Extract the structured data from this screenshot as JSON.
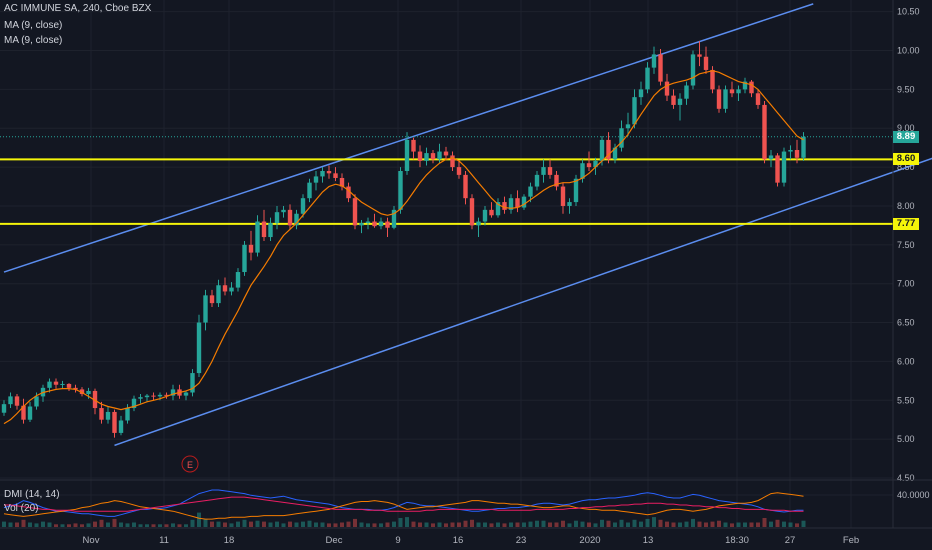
{
  "header": {
    "symbol_line": "AC IMMUNE SA, 240, Cboe BZX",
    "ma1": "MA (9, close)",
    "ma2": "MA (9, close)",
    "dmi": "DMI (14, 14)",
    "vol": "Vol (20)"
  },
  "price_tags": {
    "last": "8.89",
    "level_upper": "8.60",
    "level_lower": "7.77"
  },
  "event_marker": "E",
  "colors": {
    "background": "#131722",
    "up": "#26a69a",
    "down": "#ef5350",
    "ma": "#f57c00",
    "channel": "#5b8def",
    "level": "#f5f50a",
    "last_price": "#26a69a",
    "dmi_plus": "#2962ff",
    "dmi_minus": "#f57c00",
    "adx": "#e91e63"
  },
  "chart_data": {
    "type": "candlestick",
    "title": "AC IMMUNE SA, 240, Cboe BZX",
    "y_axis": {
      "ticks": [
        "4.50",
        "5.00",
        "5.50",
        "6.00",
        "6.50",
        "7.00",
        "7.50",
        "8.00",
        "8.50",
        "9.00",
        "9.50",
        "10.00",
        "10.50"
      ],
      "ylim": [
        4.5,
        10.65
      ]
    },
    "x_axis": {
      "ticks": [
        "Nov",
        "11",
        "18",
        "Dec",
        "9",
        "16",
        "23",
        "2020",
        "13",
        "18:30",
        "27",
        "Feb"
      ]
    },
    "horizontal_levels": [
      8.6,
      7.77
    ],
    "last_price": 8.89,
    "indicators": [
      "MA (9, close)",
      "DMI (14, 14)",
      "Vol (20)"
    ],
    "dmi_tick": "40.0000",
    "channel_lines": [
      {
        "name": "upper",
        "from": [
          0,
          7.15
        ],
        "to": [
          124.5,
          10.6
        ]
      },
      {
        "name": "lower",
        "from": [
          17,
          4.92
        ],
        "to": [
          147.5,
          8.75
        ]
      }
    ],
    "candles_ohlc": [
      [
        5.34,
        5.5,
        5.3,
        5.45
      ],
      [
        5.45,
        5.6,
        5.4,
        5.55
      ],
      [
        5.55,
        5.58,
        5.38,
        5.43
      ],
      [
        5.43,
        5.52,
        5.2,
        5.25
      ],
      [
        5.25,
        5.48,
        5.22,
        5.42
      ],
      [
        5.42,
        5.6,
        5.38,
        5.55
      ],
      [
        5.55,
        5.7,
        5.48,
        5.66
      ],
      [
        5.66,
        5.78,
        5.6,
        5.74
      ],
      [
        5.74,
        5.78,
        5.65,
        5.7
      ],
      [
        5.7,
        5.75,
        5.65,
        5.71
      ],
      [
        5.71,
        5.72,
        5.62,
        5.66
      ],
      [
        5.66,
        5.7,
        5.6,
        5.64
      ],
      [
        5.64,
        5.67,
        5.55,
        5.58
      ],
      [
        5.58,
        5.66,
        5.52,
        5.62
      ],
      [
        5.62,
        5.65,
        5.32,
        5.4
      ],
      [
        5.4,
        5.48,
        5.2,
        5.25
      ],
      [
        5.25,
        5.42,
        5.2,
        5.35
      ],
      [
        5.35,
        5.38,
        5.02,
        5.08
      ],
      [
        5.08,
        5.3,
        5.05,
        5.24
      ],
      [
        5.24,
        5.45,
        5.2,
        5.4
      ],
      [
        5.4,
        5.56,
        5.36,
        5.52
      ],
      [
        5.52,
        5.58,
        5.46,
        5.54
      ],
      [
        5.54,
        5.58,
        5.48,
        5.56
      ],
      [
        5.56,
        5.6,
        5.5,
        5.55
      ],
      [
        5.55,
        5.6,
        5.5,
        5.57
      ],
      [
        5.57,
        5.6,
        5.52,
        5.56
      ],
      [
        5.56,
        5.7,
        5.5,
        5.64
      ],
      [
        5.64,
        5.7,
        5.52,
        5.56
      ],
      [
        5.56,
        5.62,
        5.5,
        5.6
      ],
      [
        5.6,
        5.9,
        5.55,
        5.85
      ],
      [
        5.85,
        6.6,
        5.8,
        6.5
      ],
      [
        6.5,
        6.92,
        6.4,
        6.85
      ],
      [
        6.85,
        6.92,
        6.7,
        6.75
      ],
      [
        6.75,
        7.05,
        6.7,
        6.98
      ],
      [
        6.98,
        7.08,
        6.85,
        6.9
      ],
      [
        6.9,
        7.02,
        6.85,
        6.95
      ],
      [
        6.95,
        7.2,
        6.9,
        7.15
      ],
      [
        7.15,
        7.55,
        7.1,
        7.5
      ],
      [
        7.5,
        7.68,
        7.3,
        7.4
      ],
      [
        7.4,
        7.88,
        7.35,
        7.8
      ],
      [
        7.8,
        7.95,
        7.55,
        7.6
      ],
      [
        7.6,
        7.85,
        7.55,
        7.78
      ],
      [
        7.78,
        8.0,
        7.7,
        7.92
      ],
      [
        7.92,
        8.0,
        7.85,
        7.95
      ],
      [
        7.95,
        8.02,
        7.7,
        7.75
      ],
      [
        7.75,
        7.95,
        7.7,
        7.9
      ],
      [
        7.9,
        8.15,
        7.85,
        8.1
      ],
      [
        8.1,
        8.35,
        8.05,
        8.3
      ],
      [
        8.3,
        8.45,
        8.2,
        8.38
      ],
      [
        8.38,
        8.5,
        8.3,
        8.45
      ],
      [
        8.45,
        8.52,
        8.35,
        8.42
      ],
      [
        8.42,
        8.5,
        8.32,
        8.36
      ],
      [
        8.36,
        8.42,
        8.2,
        8.25
      ],
      [
        8.25,
        8.3,
        8.05,
        8.1
      ],
      [
        8.1,
        8.15,
        7.7,
        7.75
      ],
      [
        7.75,
        7.82,
        7.65,
        7.78
      ],
      [
        7.78,
        7.85,
        7.7,
        7.8
      ],
      [
        7.8,
        7.9,
        7.72,
        7.74
      ],
      [
        7.74,
        7.85,
        7.7,
        7.8
      ],
      [
        7.8,
        7.85,
        7.6,
        7.72
      ],
      [
        7.72,
        8.0,
        7.7,
        7.95
      ],
      [
        7.95,
        8.5,
        7.9,
        8.45
      ],
      [
        8.45,
        8.95,
        8.4,
        8.85
      ],
      [
        8.85,
        8.88,
        8.6,
        8.7
      ],
      [
        8.7,
        8.78,
        8.5,
        8.58
      ],
      [
        8.58,
        8.75,
        8.52,
        8.68
      ],
      [
        8.68,
        8.72,
        8.55,
        8.6
      ],
      [
        8.6,
        8.8,
        8.55,
        8.7
      ],
      [
        8.7,
        8.76,
        8.6,
        8.65
      ],
      [
        8.65,
        8.7,
        8.45,
        8.5
      ],
      [
        8.5,
        8.58,
        8.35,
        8.4
      ],
      [
        8.4,
        8.45,
        8.02,
        8.1
      ],
      [
        8.1,
        8.15,
        7.7,
        7.75
      ],
      [
        7.75,
        7.85,
        7.6,
        7.8
      ],
      [
        7.8,
        8.0,
        7.75,
        7.95
      ],
      [
        7.95,
        8.05,
        7.85,
        7.88
      ],
      [
        7.88,
        8.1,
        7.85,
        8.05
      ],
      [
        8.05,
        8.12,
        7.9,
        7.95
      ],
      [
        7.95,
        8.15,
        7.9,
        8.1
      ],
      [
        8.1,
        8.2,
        7.92,
        7.98
      ],
      [
        7.98,
        8.15,
        7.95,
        8.12
      ],
      [
        8.12,
        8.3,
        8.05,
        8.25
      ],
      [
        8.25,
        8.45,
        8.2,
        8.4
      ],
      [
        8.4,
        8.6,
        8.3,
        8.5
      ],
      [
        8.5,
        8.6,
        8.35,
        8.4
      ],
      [
        8.4,
        8.45,
        8.2,
        8.25
      ],
      [
        8.25,
        8.3,
        7.9,
        8.0
      ],
      [
        8.0,
        8.1,
        7.9,
        8.05
      ],
      [
        8.05,
        8.4,
        8.0,
        8.35
      ],
      [
        8.35,
        8.6,
        8.3,
        8.55
      ],
      [
        8.55,
        8.7,
        8.45,
        8.5
      ],
      [
        8.5,
        8.62,
        8.4,
        8.58
      ],
      [
        8.58,
        8.9,
        8.52,
        8.85
      ],
      [
        8.85,
        8.95,
        8.55,
        8.6
      ],
      [
        8.6,
        8.8,
        8.55,
        8.75
      ],
      [
        8.75,
        9.1,
        8.7,
        9.0
      ],
      [
        9.0,
        9.2,
        8.9,
        9.05
      ],
      [
        9.05,
        9.5,
        9.0,
        9.4
      ],
      [
        9.4,
        9.6,
        9.3,
        9.5
      ],
      [
        9.5,
        9.85,
        9.45,
        9.78
      ],
      [
        9.78,
        10.05,
        9.7,
        9.95
      ],
      [
        9.95,
        10.02,
        9.55,
        9.6
      ],
      [
        9.6,
        9.7,
        9.35,
        9.42
      ],
      [
        9.42,
        9.5,
        9.25,
        9.3
      ],
      [
        9.3,
        9.45,
        9.1,
        9.38
      ],
      [
        9.38,
        9.6,
        9.3,
        9.55
      ],
      [
        9.55,
        10.0,
        9.5,
        9.95
      ],
      [
        9.95,
        10.12,
        9.8,
        9.92
      ],
      [
        9.92,
        10.05,
        9.7,
        9.75
      ],
      [
        9.75,
        9.8,
        9.45,
        9.5
      ],
      [
        9.5,
        9.55,
        9.2,
        9.25
      ],
      [
        9.25,
        9.55,
        9.2,
        9.5
      ],
      [
        9.5,
        9.6,
        9.4,
        9.45
      ],
      [
        9.45,
        9.55,
        9.35,
        9.5
      ],
      [
        9.5,
        9.65,
        9.45,
        9.6
      ],
      [
        9.6,
        9.62,
        9.4,
        9.45
      ],
      [
        9.45,
        9.5,
        9.25,
        9.3
      ],
      [
        9.3,
        9.35,
        8.55,
        8.6
      ],
      [
        8.6,
        8.72,
        8.5,
        8.65
      ],
      [
        8.65,
        8.68,
        8.25,
        8.3
      ],
      [
        8.3,
        8.75,
        8.25,
        8.7
      ],
      [
        8.7,
        8.78,
        8.6,
        8.72
      ],
      [
        8.72,
        8.85,
        8.55,
        8.62
      ],
      [
        8.62,
        8.95,
        8.58,
        8.89
      ]
    ],
    "ma9": [
      5.2,
      5.25,
      5.33,
      5.42,
      5.5,
      5.56,
      5.6,
      5.62,
      5.64,
      5.65,
      5.65,
      5.64,
      5.6,
      5.55,
      5.5,
      5.45,
      5.42,
      5.4,
      5.38,
      5.4,
      5.42,
      5.45,
      5.48,
      5.5,
      5.52,
      5.55,
      5.58,
      5.6,
      5.62,
      5.65,
      5.72,
      5.85,
      6.0,
      6.18,
      6.35,
      6.5,
      6.65,
      6.82,
      6.98,
      7.1,
      7.22,
      7.35,
      7.5,
      7.62,
      7.7,
      7.78,
      7.88,
      7.98,
      8.08,
      8.18,
      8.25,
      8.28,
      8.26,
      8.2,
      8.12,
      8.05,
      8.0,
      7.95,
      7.9,
      7.88,
      7.9,
      7.96,
      8.06,
      8.18,
      8.3,
      8.4,
      8.48,
      8.55,
      8.6,
      8.62,
      8.58,
      8.5,
      8.4,
      8.3,
      8.2,
      8.1,
      8.02,
      7.98,
      7.97,
      7.98,
      8.02,
      8.08,
      8.14,
      8.2,
      8.25,
      8.28,
      8.3,
      8.3,
      8.32,
      8.36,
      8.42,
      8.5,
      8.58,
      8.66,
      8.74,
      8.82,
      8.92,
      9.05,
      9.18,
      9.3,
      9.42,
      9.5,
      9.55,
      9.58,
      9.6,
      9.62,
      9.65,
      9.7,
      9.72,
      9.74,
      9.72,
      9.68,
      9.64,
      9.6,
      9.58,
      9.56,
      9.5,
      9.4,
      9.3,
      9.2,
      9.1,
      9.0,
      8.9,
      8.85
    ],
    "volume": [
      6,
      5,
      5,
      8,
      5,
      4,
      6,
      5,
      3,
      3,
      3,
      4,
      3,
      4,
      6,
      8,
      5,
      9,
      5,
      4,
      5,
      3,
      3,
      3,
      3,
      3,
      4,
      3,
      3,
      8,
      16,
      9,
      6,
      6,
      5,
      4,
      6,
      8,
      6,
      7,
      6,
      5,
      6,
      4,
      6,
      5,
      6,
      7,
      5,
      5,
      4,
      4,
      5,
      6,
      9,
      5,
      4,
      4,
      4,
      5,
      6,
      10,
      11,
      6,
      5,
      5,
      4,
      5,
      4,
      5,
      5,
      7,
      8,
      5,
      5,
      4,
      5,
      4,
      5,
      5,
      5,
      6,
      7,
      7,
      5,
      5,
      7,
      4,
      7,
      6,
      5,
      4,
      8,
      7,
      5,
      8,
      5,
      8,
      6,
      9,
      11,
      8,
      6,
      5,
      5,
      6,
      9,
      6,
      5,
      6,
      7,
      5,
      4,
      5,
      5,
      5,
      5,
      10,
      6,
      8,
      6,
      5,
      4,
      7
    ],
    "dmi_plus": [
      22,
      24,
      26,
      30,
      28,
      25,
      22,
      20,
      18,
      18,
      17,
      16,
      15,
      15,
      14,
      13,
      12,
      12,
      14,
      16,
      18,
      20,
      20,
      21,
      21,
      22,
      24,
      26,
      30,
      34,
      38,
      40,
      42,
      42,
      41,
      40,
      39,
      38,
      36,
      35,
      34,
      33,
      34,
      35,
      33,
      31,
      30,
      29,
      28,
      27,
      26,
      24,
      22,
      21,
      20,
      20,
      20,
      19,
      19,
      20,
      22,
      25,
      28,
      27,
      25,
      24,
      24,
      23,
      22,
      21,
      20,
      19,
      18,
      18,
      19,
      20,
      21,
      21,
      22,
      22,
      23,
      24,
      26,
      27,
      27,
      26,
      25,
      26,
      28,
      30,
      31,
      31,
      32,
      33,
      33,
      34,
      35,
      36,
      38,
      39,
      38,
      36,
      34,
      33,
      33,
      35,
      37,
      36,
      34,
      32,
      30,
      29,
      28,
      27,
      26,
      25,
      23,
      20,
      19,
      18,
      17,
      18,
      19,
      19
    ],
    "dmi_minus": [
      15,
      14,
      13,
      12,
      13,
      14,
      15,
      16,
      17,
      18,
      19,
      20,
      22,
      23,
      25,
      27,
      28,
      30,
      29,
      27,
      25,
      23,
      22,
      21,
      20,
      19,
      18,
      16,
      14,
      12,
      10,
      9,
      9,
      10,
      10,
      11,
      11,
      11,
      12,
      12,
      13,
      13,
      13,
      13,
      14,
      15,
      16,
      17,
      18,
      19,
      20,
      22,
      24,
      26,
      28,
      29,
      29,
      30,
      29,
      28,
      26,
      23,
      20,
      21,
      22,
      23,
      23,
      24,
      25,
      26,
      27,
      28,
      30,
      30,
      29,
      28,
      27,
      27,
      26,
      26,
      25,
      24,
      23,
      22,
      22,
      23,
      24,
      24,
      22,
      21,
      20,
      20,
      19,
      19,
      19,
      18,
      17,
      16,
      15,
      14,
      15,
      17,
      19,
      20,
      20,
      19,
      18,
      19,
      20,
      22,
      24,
      25,
      26,
      27,
      27,
      28,
      30,
      34,
      38,
      39,
      38,
      37,
      36,
      35
    ],
    "adx": [
      25,
      25,
      24,
      23,
      22,
      21,
      20,
      20,
      19,
      19,
      19,
      18,
      18,
      18,
      18,
      18,
      18,
      18,
      18,
      18,
      19,
      20,
      21,
      22,
      23,
      24,
      25,
      26,
      27,
      28,
      29,
      30,
      31,
      32,
      33,
      34,
      34,
      34,
      33,
      32,
      31,
      30,
      29,
      28,
      27,
      26,
      25,
      24,
      23,
      22,
      21,
      20,
      20,
      20,
      20,
      20,
      19,
      19,
      19,
      18,
      18,
      18,
      18,
      18,
      18,
      19,
      19,
      20,
      20,
      20,
      20,
      20,
      20,
      20,
      20,
      20,
      19,
      19,
      19,
      19,
      19,
      19,
      20,
      20,
      20,
      20,
      20,
      21,
      21,
      22,
      22,
      23,
      23,
      24,
      24,
      25,
      25,
      26,
      26,
      27,
      27,
      27,
      26,
      26,
      25,
      25,
      24,
      24,
      23,
      23,
      22,
      22,
      21,
      21,
      20,
      20,
      20,
      20,
      19,
      19,
      19,
      18,
      18,
      18
    ]
  }
}
